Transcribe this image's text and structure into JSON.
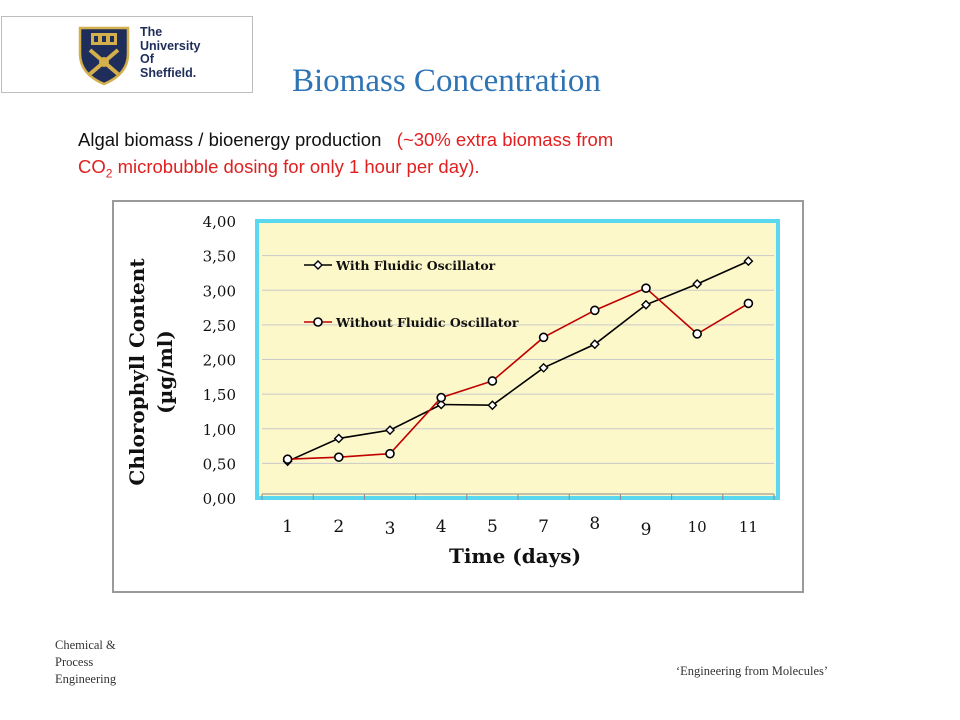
{
  "logo": {
    "lines": [
      "The",
      "University",
      "Of",
      "Sheffield."
    ],
    "colors": {
      "shield_blue": "#1f2d5a",
      "shield_gold": "#d4b04c"
    }
  },
  "slide": {
    "title": "Biomass Concentration",
    "subtitle_main": "Algal biomass / bioenergy production",
    "subtitle_note_1": "(~30% extra biomass from",
    "subtitle_note_co": "CO",
    "subtitle_note_sub": "2",
    "subtitle_note_2": " microbubble dosing for only 1 hour per day).",
    "colors": {
      "title": "#2e74b5",
      "note": "#e02020"
    }
  },
  "chart_data": {
    "type": "line",
    "ylabel_line1": "Chlorophyll Content",
    "ylabel_line2": "(µg/ml)",
    "xlabel": "Time (days)",
    "categories": [
      "1",
      "2",
      "3",
      "4",
      "5",
      "7",
      "8",
      "9",
      "10",
      "11"
    ],
    "ylim": [
      0,
      4
    ],
    "yticks": [
      "0,00",
      "0,50",
      "1,00",
      "1,50",
      "2,00",
      "2,50",
      "3,00",
      "3,50",
      "4,00"
    ],
    "grid": true,
    "legend_position": "top-left",
    "series": [
      {
        "name": "With Fluidic Oscillator",
        "marker": "diamond",
        "color": "#000000",
        "values": [
          0.53,
          0.86,
          0.98,
          1.35,
          1.34,
          1.88,
          2.22,
          2.79,
          3.09,
          3.42
        ]
      },
      {
        "name": "Without Fluidic Oscillator",
        "marker": "circle",
        "color": "#c00000",
        "values": [
          0.56,
          0.59,
          0.64,
          1.45,
          1.69,
          2.32,
          2.71,
          3.03,
          2.37,
          2.81
        ]
      }
    ],
    "colors": {
      "plot_bg": "#fdf8c9",
      "plot_border": "#5ad8f0",
      "grid": "#c9c9c9"
    }
  },
  "footer": {
    "left_lines": [
      "Chemical &",
      "Process",
      "Engineering"
    ],
    "right": "‘Engineering from Molecules’"
  }
}
